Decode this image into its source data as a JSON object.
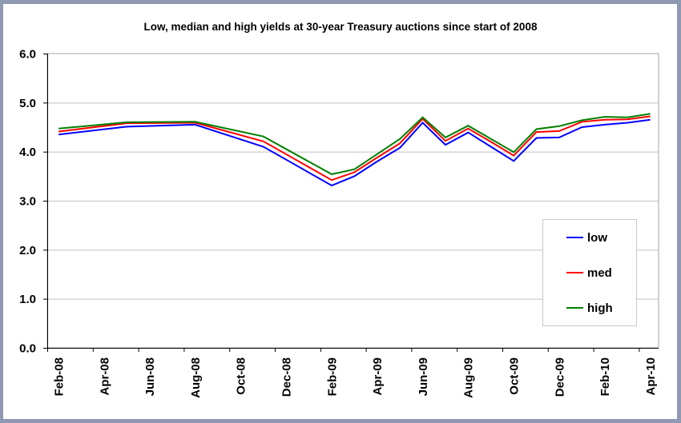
{
  "chart_data": {
    "type": "line",
    "title": "Low, median and high yields at 30-year Treasury auctions since start of 2008",
    "xlabel": "",
    "ylabel": "",
    "ylim": [
      0,
      6
    ],
    "yticks": [
      "0.0",
      "1.0",
      "2.0",
      "3.0",
      "4.0",
      "5.0",
      "6.0"
    ],
    "xticks": [
      "Feb-08",
      "Apr-08",
      "Jun-08",
      "Aug-08",
      "Oct-08",
      "Dec-08",
      "Feb-09",
      "Apr-09",
      "Jun-09",
      "Aug-09",
      "Oct-09",
      "Dec-09",
      "Feb-10",
      "Apr-10"
    ],
    "x": [
      "2008-02",
      "2008-05",
      "2008-08",
      "2008-11",
      "2009-02",
      "2009-03",
      "2009-04",
      "2009-05",
      "2009-06",
      "2009-07",
      "2009-08",
      "2009-09",
      "2009-10",
      "2009-11",
      "2009-12",
      "2010-01",
      "2010-02",
      "2010-03",
      "2010-04"
    ],
    "series": [
      {
        "name": "low",
        "color": "#0000ff",
        "values": [
          4.35,
          4.51,
          4.55,
          4.1,
          3.31,
          3.5,
          3.8,
          4.08,
          4.59,
          4.14,
          4.39,
          4.1,
          3.81,
          4.28,
          4.29,
          4.5,
          4.55,
          4.59,
          4.65
        ]
      },
      {
        "name": "med",
        "color": "#ff0000",
        "values": [
          4.41,
          4.58,
          4.59,
          4.21,
          3.42,
          3.58,
          3.88,
          4.17,
          4.67,
          4.22,
          4.47,
          4.2,
          3.92,
          4.4,
          4.42,
          4.61,
          4.65,
          4.66,
          4.72
        ]
      },
      {
        "name": "high",
        "color": "#008000",
        "values": [
          4.47,
          4.6,
          4.61,
          4.31,
          3.54,
          3.64,
          3.95,
          4.26,
          4.7,
          4.29,
          4.53,
          4.26,
          3.99,
          4.46,
          4.52,
          4.64,
          4.71,
          4.7,
          4.77
        ]
      }
    ],
    "grid": "horizontal",
    "legend_position": "right"
  }
}
